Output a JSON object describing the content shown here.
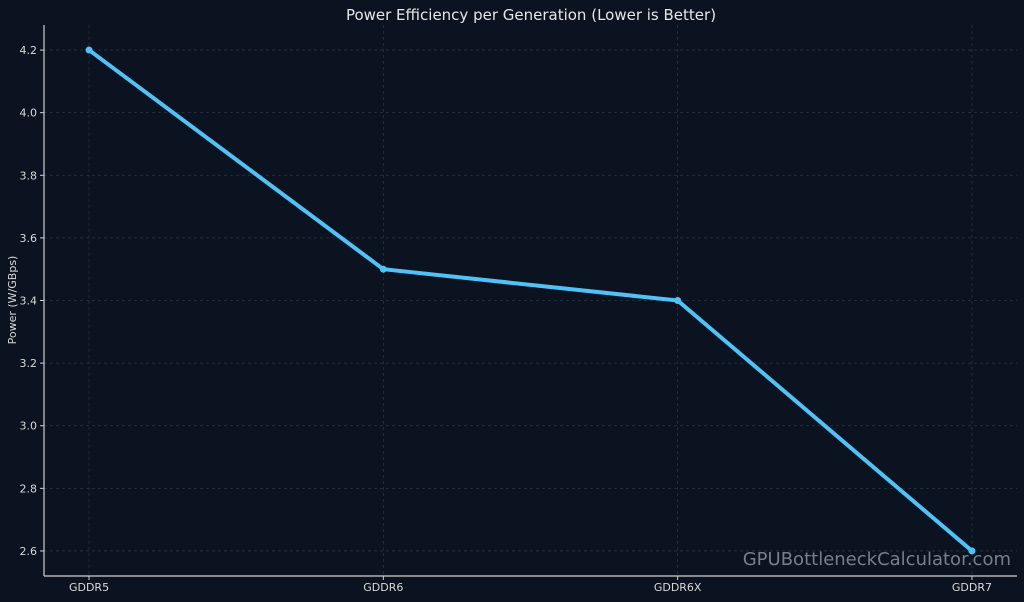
{
  "chart_data": {
    "type": "line",
    "title": "Power Efficiency per Generation (Lower is Better)",
    "xlabel": "",
    "ylabel": "Power (W/GBps)",
    "categories": [
      "GDDR5",
      "GDDR6",
      "GDDR6X",
      "GDDR7"
    ],
    "values": [
      4.2,
      3.5,
      3.4,
      2.6
    ],
    "ylim": [
      2.52,
      4.28
    ],
    "yticks": [
      "2.6",
      "2.8",
      "3.0",
      "3.2",
      "3.4",
      "3.6",
      "3.8",
      "4.0",
      "4.2"
    ],
    "grid": true,
    "line_color": "#4fc3f7",
    "background_color": "#0b1320"
  },
  "watermark": "GPUBottleneckCalculator.com"
}
